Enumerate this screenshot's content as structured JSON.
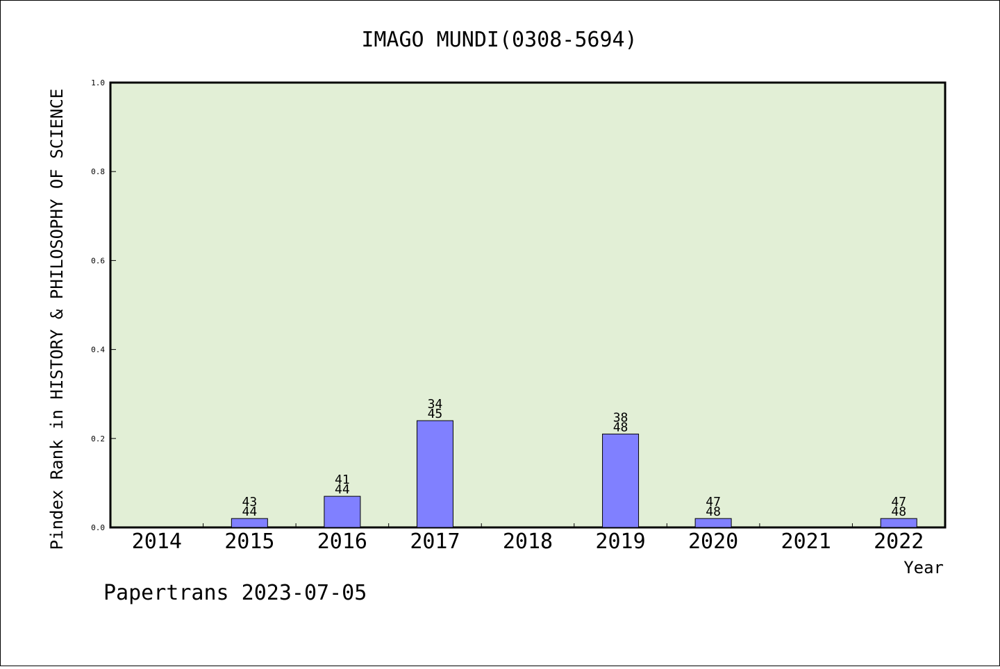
{
  "chart_data": {
    "type": "bar",
    "title": "IMAGO MUNDI(0308-5694)",
    "xlabel": "Year",
    "ylabel": "Pindex Rank in HISTORY & PHILOSOPHY OF SCIENCE",
    "footer": "Papertrans 2023-07-05",
    "categories": [
      "2014",
      "2015",
      "2016",
      "2017",
      "2018",
      "2019",
      "2020",
      "2021",
      "2022"
    ],
    "values": [
      null,
      0.02,
      0.07,
      0.24,
      null,
      0.21,
      0.02,
      null,
      0.02
    ],
    "rank_labels": [
      null,
      [
        "43",
        "44"
      ],
      [
        "41",
        "44"
      ],
      [
        "34",
        "45"
      ],
      null,
      [
        "38",
        "48"
      ],
      [
        "47",
        "48"
      ],
      null,
      [
        "47",
        "48"
      ]
    ],
    "ylim": [
      0,
      1.0
    ],
    "yticks": [
      "0.0",
      "0.2",
      "0.4",
      "0.6",
      "0.8",
      "1.0"
    ],
    "grid": false,
    "colors": {
      "plot_background": "#e2efd6",
      "bar_fill": "#8080ff",
      "bar_stroke": "#000000"
    }
  }
}
